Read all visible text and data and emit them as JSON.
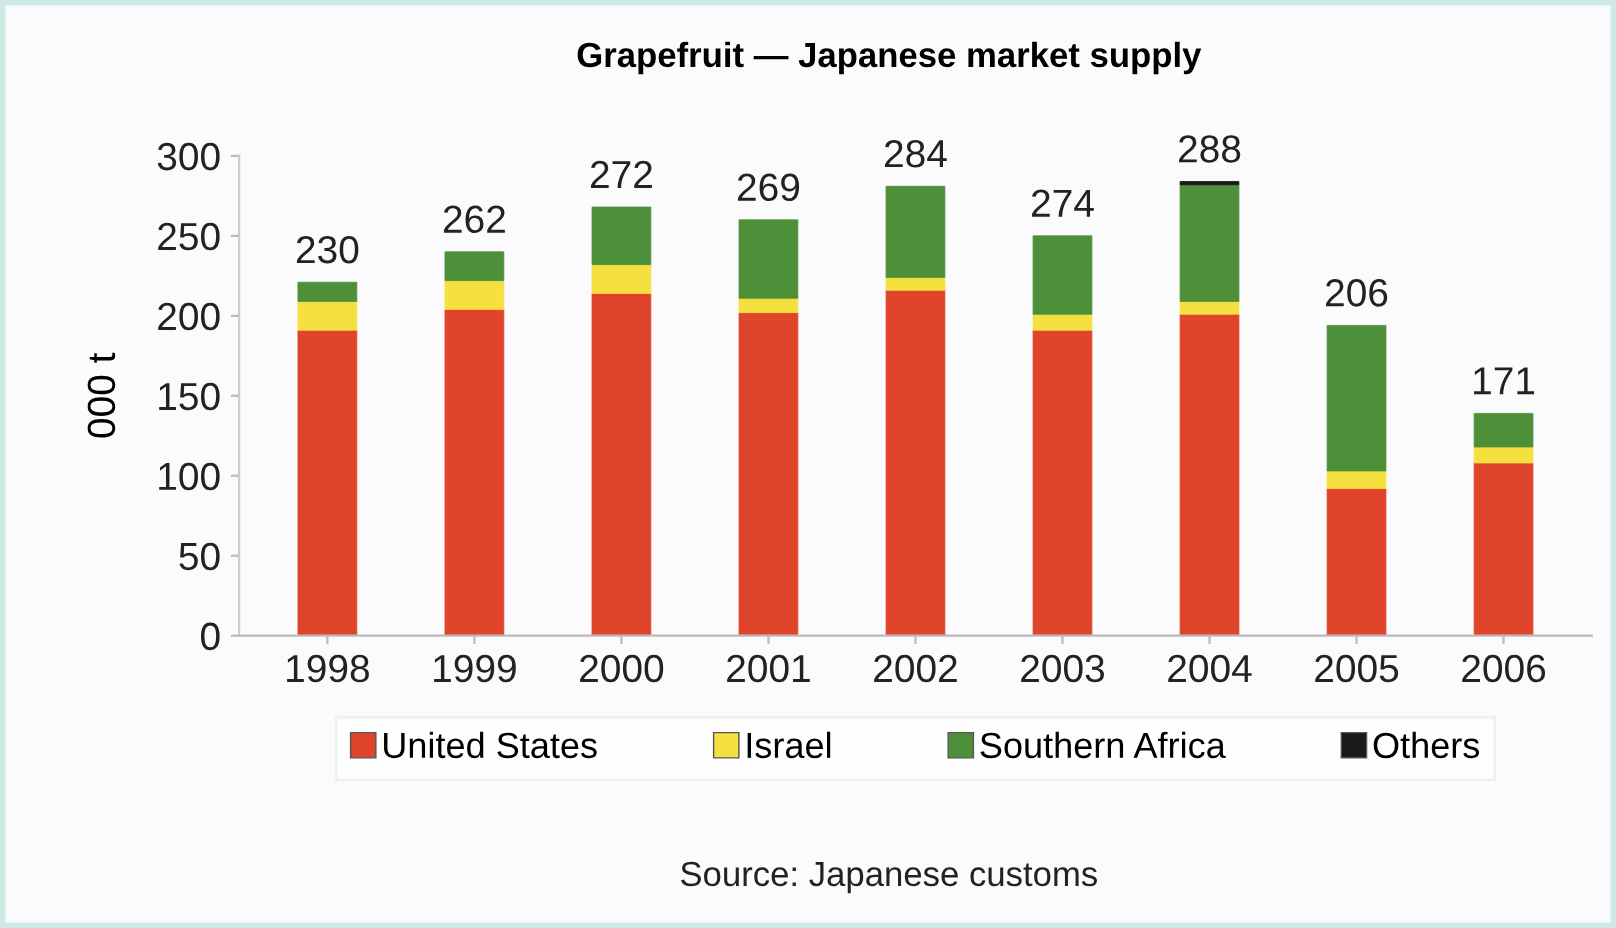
{
  "chart_data": {
    "type": "bar",
    "title": "Grapefruit — Japanese market supply",
    "ylabel": "000 t",
    "categories": [
      "1998",
      "1999",
      "2000",
      "2001",
      "2002",
      "2003",
      "2004",
      "2005",
      "2006"
    ],
    "stacked": true,
    "series": [
      {
        "name": "United States",
        "color": "#e0442a",
        "values": [
          191,
          204,
          214,
          202,
          216,
          191,
          201,
          92,
          108
        ]
      },
      {
        "name": "Israel",
        "color": "#f5e040",
        "values": [
          18,
          18,
          18,
          9,
          8,
          10,
          8,
          11,
          10
        ]
      },
      {
        "name": "Southern Africa",
        "color": "#4e8f3a",
        "values": [
          12,
          18,
          36,
          49,
          57,
          49,
          73,
          91,
          21
        ]
      },
      {
        "name": "Others",
        "color": "#1a1a1a",
        "values": [
          null,
          null,
          null,
          null,
          null,
          null,
          2,
          null,
          null
        ]
      }
    ],
    "ylim": [
      0,
      300
    ],
    "yticks": [
      0,
      50,
      100,
      150,
      200,
      250,
      300
    ],
    "grid": false,
    "legend": "bottom",
    "annotations": [
      {
        "text": "230",
        "x": "1998",
        "y": 221
      },
      {
        "text": "262",
        "x": "1999",
        "y": 240
      },
      {
        "text": "272",
        "x": "2000",
        "y": 268
      },
      {
        "text": "269",
        "x": "2001",
        "y": 260
      },
      {
        "text": "284",
        "x": "2002",
        "y": 281
      },
      {
        "text": "274",
        "x": "2003",
        "y": 250
      },
      {
        "text": "288",
        "x": "2004",
        "y": 284
      },
      {
        "text": "206",
        "x": "2005",
        "y": 194
      },
      {
        "text": "171",
        "x": "2006",
        "y": 139
      },
      "Source: Japanese customs"
    ]
  }
}
